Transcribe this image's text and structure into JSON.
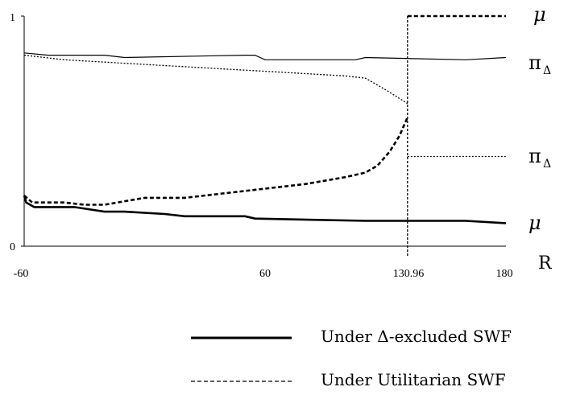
{
  "chart_data": {
    "type": "line",
    "xlabel": "R",
    "x_ticks": [
      "-60",
      "60",
      "130.96",
      "180"
    ],
    "x_tick_values": [
      -60,
      60,
      130.96,
      180
    ],
    "y_ticks": [
      "0",
      "1"
    ],
    "y_tick_values": [
      0,
      1
    ],
    "xlim": [
      -60,
      180
    ],
    "ylim": [
      0,
      1
    ],
    "grid": false,
    "threshold": 130.96,
    "series": [
      {
        "name": "π_Δ",
        "group": "Under Δ-excluded SWF",
        "style": "solid-thin",
        "x": [
          -60,
          -48,
          -20,
          -10,
          50,
          55,
          60,
          105,
          110,
          160,
          180
        ],
        "y": [
          0.84,
          0.83,
          0.83,
          0.82,
          0.83,
          0.83,
          0.81,
          0.81,
          0.82,
          0.81,
          0.82
        ]
      },
      {
        "name": "μ",
        "group": "Under Δ-excluded SWF",
        "style": "solid-thick",
        "x": [
          -60,
          -59,
          -55,
          -48,
          -35,
          -20,
          -10,
          10,
          20,
          40,
          50,
          55,
          110,
          160,
          180
        ],
        "y": [
          0.22,
          0.19,
          0.17,
          0.17,
          0.17,
          0.15,
          0.15,
          0.14,
          0.13,
          0.13,
          0.13,
          0.12,
          0.11,
          0.11,
          0.1
        ]
      },
      {
        "name": "π_Δ",
        "group": "Under Utilitarian SWF",
        "style": "dotted",
        "x": [
          -60,
          -40,
          -20,
          0,
          20,
          40,
          60,
          80,
          100,
          110,
          120,
          130.96,
          130.96,
          180
        ],
        "y": [
          0.83,
          0.81,
          0.8,
          0.79,
          0.78,
          0.77,
          0.76,
          0.75,
          0.74,
          0.73,
          0.68,
          0.62,
          0.39,
          0.39
        ]
      },
      {
        "name": "μ",
        "group": "Under Utilitarian SWF",
        "style": "dashed-thick",
        "x": [
          -60,
          -56,
          -40,
          -30,
          -20,
          0,
          20,
          40,
          60,
          80,
          100,
          110,
          116,
          122,
          127,
          130.96,
          130.96,
          180
        ],
        "y": [
          0.22,
          0.19,
          0.19,
          0.18,
          0.18,
          0.21,
          0.21,
          0.23,
          0.25,
          0.27,
          0.3,
          0.32,
          0.35,
          0.41,
          0.48,
          0.56,
          1.0,
          1.0
        ]
      }
    ],
    "right_labels": [
      "μ",
      "π",
      "Δ",
      "π",
      "Δ",
      "μ"
    ],
    "legend": {
      "placement": "bottom-right",
      "entries": [
        "Under Δ-excluded SWF",
        "Under Utilitarian SWF"
      ]
    }
  }
}
